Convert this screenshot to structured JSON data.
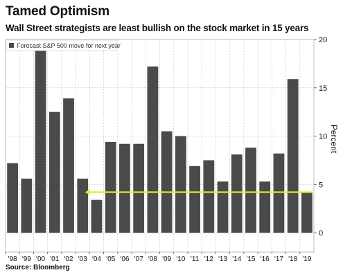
{
  "title": "Tamed Optimism",
  "subtitle": "Wall Street strategists are least bullish on the stock market in 15 years",
  "source": "Source: Bloomberg",
  "colors": {
    "bar": "#4a4a4a",
    "highlight_line": "#e8e62a",
    "grid": "#c8c8c8",
    "frame": "#b0b0b0",
    "text": "#111111"
  },
  "chart_data": {
    "type": "bar",
    "legend": {
      "label": "Forecast S&P 500 move for next year",
      "placement": "top-left"
    },
    "categories": [
      "'98",
      "'99",
      "'00",
      "'01",
      "'02",
      "'03",
      "'04",
      "'05",
      "'06",
      "'07",
      "'08",
      "'09",
      "'10",
      "'11",
      "'12",
      "'13",
      "'14",
      "'15",
      "'16",
      "'17",
      "'18",
      "'19"
    ],
    "values": [
      7.2,
      5.6,
      19.0,
      12.5,
      13.9,
      5.6,
      3.4,
      9.4,
      9.2,
      9.2,
      17.2,
      10.5,
      10.0,
      6.9,
      7.5,
      5.3,
      8.1,
      8.8,
      5.3,
      8.2,
      15.9,
      4.2
    ],
    "ylabel": "Percent",
    "ylim": [
      -2,
      20
    ],
    "yticks": [
      0,
      5,
      10,
      15,
      20
    ],
    "y_axis_side": "right",
    "grid": true,
    "reference_line": {
      "value": 4.2,
      "from_category": "'04",
      "to_category": "'19"
    }
  }
}
